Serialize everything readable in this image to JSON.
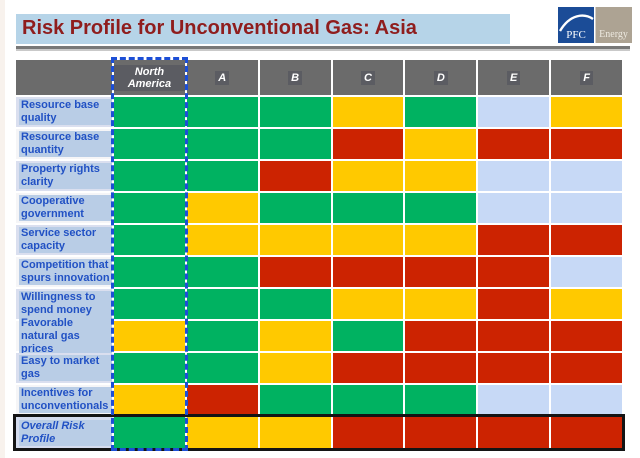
{
  "title": "Risk Profile for Unconventional Gas: Asia",
  "logo": {
    "name": "PFC Energy",
    "pfc": "PFC",
    "energy": "Energy"
  },
  "table": {
    "columns": [
      "North America",
      "A",
      "B",
      "C",
      "D",
      "E",
      "F"
    ],
    "highlighted_column": "North America",
    "rows": [
      {
        "label": "Resource base quality",
        "cells": [
          "green",
          "green",
          "green",
          "yellow",
          "green",
          "lightblue",
          "yellow"
        ]
      },
      {
        "label": "Resource base quantity",
        "cells": [
          "green",
          "green",
          "green",
          "red",
          "yellow",
          "red",
          "red"
        ]
      },
      {
        "label": "Property rights clarity",
        "cells": [
          "green",
          "green",
          "red",
          "yellow",
          "yellow",
          "lightblue",
          "lightblue"
        ]
      },
      {
        "label": "Cooperative government",
        "cells": [
          "green",
          "yellow",
          "green",
          "green",
          "green",
          "lightblue",
          "lightblue"
        ]
      },
      {
        "label": "Service sector capacity",
        "cells": [
          "green",
          "yellow",
          "yellow",
          "yellow",
          "yellow",
          "red",
          "red"
        ]
      },
      {
        "label": "Competition that spurs innovation",
        "cells": [
          "green",
          "green",
          "red",
          "red",
          "red",
          "red",
          "lightblue"
        ]
      },
      {
        "label": "Willingness to spend money",
        "cells": [
          "green",
          "green",
          "green",
          "yellow",
          "yellow",
          "red",
          "yellow"
        ]
      },
      {
        "label": "Favorable natural gas prices",
        "cells": [
          "yellow",
          "green",
          "yellow",
          "green",
          "red",
          "red",
          "red"
        ]
      },
      {
        "label": "Easy to market gas",
        "cells": [
          "green",
          "green",
          "yellow",
          "red",
          "red",
          "red",
          "red"
        ]
      },
      {
        "label": "Incentives for unconventionals",
        "cells": [
          "yellow",
          "red",
          "green",
          "green",
          "green",
          "lightblue",
          "lightblue"
        ]
      },
      {
        "label": "Overall Risk Profile",
        "cells": [
          "green",
          "yellow",
          "yellow",
          "red",
          "red",
          "red",
          "red"
        ],
        "emphasized": true
      }
    ]
  },
  "colors": {
    "green": "#00B261",
    "yellow": "#FFC900",
    "red": "#CC2301",
    "lightblue": "#C7D9F6",
    "header_bg": "#6B6B6B",
    "label_text": "#2151C4",
    "label_highlight": "#B9CDE6",
    "title_text": "#8F1D1D",
    "title_highlight": "#B6D4E8",
    "na_dashed_border": "#1D4FD6",
    "overall_border": "#141414",
    "logo_blue": "#1B4C97",
    "logo_taupe": "#ADA393"
  }
}
